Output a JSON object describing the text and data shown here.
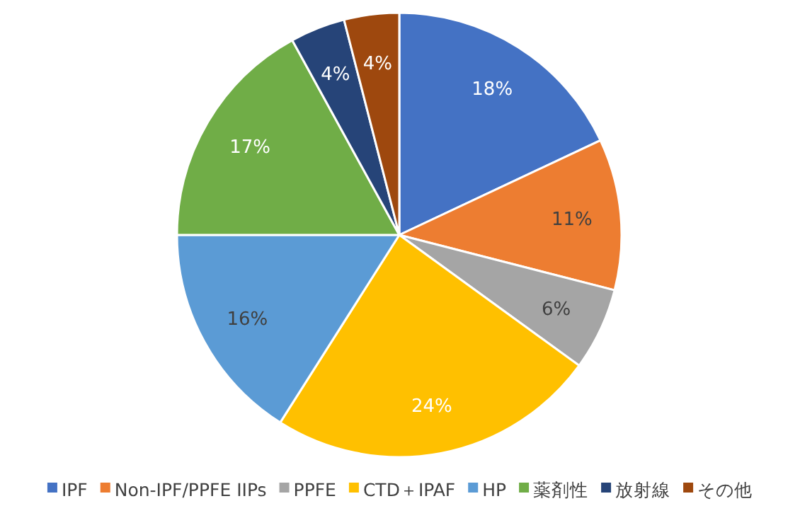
{
  "chart_data": {
    "type": "pie",
    "categories": [
      "IPF",
      "Non-IPF/PPFE IIPs",
      "PPFE",
      "CTD＋IPAF",
      "HP",
      "薬剤性",
      "放射線",
      "その他"
    ],
    "values": [
      18,
      11,
      6,
      24,
      16,
      17,
      4,
      4
    ],
    "colors": [
      "#4472c4",
      "#ed7d31",
      "#a5a5a5",
      "#ffc000",
      "#5b9bd5",
      "#70ad47",
      "#264478",
      "#9e480e"
    ],
    "value_labels": [
      "18%",
      "11%",
      "6%",
      "24%",
      "16%",
      "17%",
      "4%",
      "4%"
    ],
    "legend": "bottom"
  }
}
